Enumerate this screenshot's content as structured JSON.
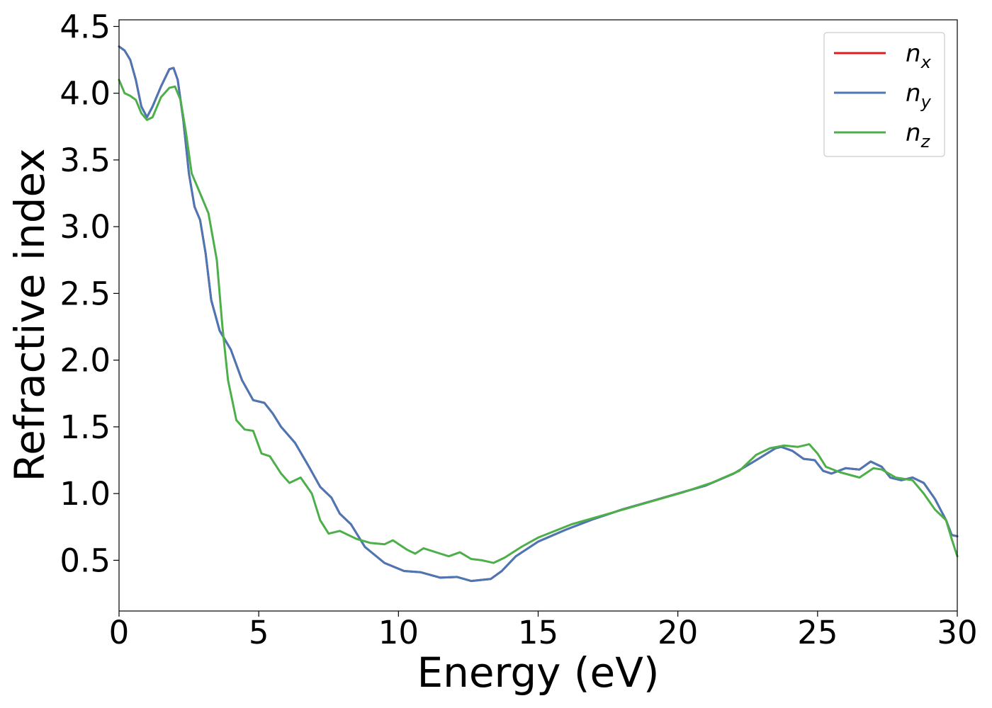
{
  "chart_data": {
    "type": "line",
    "xlabel": "Energy (eV)",
    "ylabel": "Refractive index",
    "xlim": [
      0,
      30
    ],
    "ylim": [
      0.12,
      4.55
    ],
    "x_ticks": [
      "0",
      "5",
      "10",
      "15",
      "20",
      "25",
      "30"
    ],
    "y_ticks": [
      "0.5",
      "1.0",
      "1.5",
      "2.0",
      "2.5",
      "3.0",
      "3.5",
      "4.0",
      "4.5"
    ],
    "legend_position": "top-right",
    "grid": false,
    "series": [
      {
        "name": "n",
        "sub": "x",
        "color": "#e41a1c",
        "points": [
          [
            0,
            4.35
          ],
          [
            0.2,
            4.32
          ],
          [
            0.4,
            4.25
          ],
          [
            0.6,
            4.1
          ],
          [
            0.8,
            3.9
          ],
          [
            1.0,
            3.82
          ],
          [
            1.2,
            3.9
          ],
          [
            1.5,
            4.05
          ],
          [
            1.8,
            4.18
          ],
          [
            1.95,
            4.19
          ],
          [
            2.1,
            4.1
          ],
          [
            2.3,
            3.8
          ],
          [
            2.5,
            3.4
          ],
          [
            2.7,
            3.15
          ],
          [
            2.9,
            3.05
          ],
          [
            3.1,
            2.8
          ],
          [
            3.3,
            2.45
          ],
          [
            3.6,
            2.22
          ],
          [
            4.0,
            2.08
          ],
          [
            4.4,
            1.85
          ],
          [
            4.8,
            1.7
          ],
          [
            5.2,
            1.68
          ],
          [
            5.5,
            1.6
          ],
          [
            5.8,
            1.5
          ],
          [
            6.3,
            1.38
          ],
          [
            6.8,
            1.2
          ],
          [
            7.2,
            1.05
          ],
          [
            7.6,
            0.97
          ],
          [
            7.9,
            0.85
          ],
          [
            8.3,
            0.77
          ],
          [
            8.8,
            0.6
          ],
          [
            9.5,
            0.48
          ],
          [
            10.2,
            0.42
          ],
          [
            10.8,
            0.41
          ],
          [
            11.5,
            0.37
          ],
          [
            12.1,
            0.375
          ],
          [
            12.6,
            0.345
          ],
          [
            13.3,
            0.36
          ],
          [
            13.7,
            0.42
          ],
          [
            14.2,
            0.53
          ],
          [
            15.0,
            0.64
          ],
          [
            16.0,
            0.73
          ],
          [
            17.0,
            0.81
          ],
          [
            18.0,
            0.88
          ],
          [
            19.0,
            0.94
          ],
          [
            20.0,
            1.0
          ],
          [
            21.0,
            1.06
          ],
          [
            22.0,
            1.15
          ],
          [
            22.8,
            1.25
          ],
          [
            23.5,
            1.34
          ],
          [
            23.7,
            1.35
          ],
          [
            24.1,
            1.32
          ],
          [
            24.5,
            1.26
          ],
          [
            24.9,
            1.25
          ],
          [
            25.2,
            1.17
          ],
          [
            25.5,
            1.15
          ],
          [
            26.0,
            1.19
          ],
          [
            26.5,
            1.18
          ],
          [
            26.9,
            1.24
          ],
          [
            27.3,
            1.2
          ],
          [
            27.6,
            1.12
          ],
          [
            28.0,
            1.1
          ],
          [
            28.4,
            1.12
          ],
          [
            28.8,
            1.08
          ],
          [
            29.2,
            0.96
          ],
          [
            29.6,
            0.8
          ],
          [
            29.8,
            0.69
          ],
          [
            30,
            0.68
          ]
        ]
      },
      {
        "name": "n",
        "sub": "y",
        "color": "#4a77b5",
        "points": [
          [
            0,
            4.35
          ],
          [
            0.2,
            4.32
          ],
          [
            0.4,
            4.25
          ],
          [
            0.6,
            4.1
          ],
          [
            0.8,
            3.9
          ],
          [
            1.0,
            3.82
          ],
          [
            1.2,
            3.9
          ],
          [
            1.5,
            4.05
          ],
          [
            1.8,
            4.18
          ],
          [
            1.95,
            4.19
          ],
          [
            2.1,
            4.1
          ],
          [
            2.3,
            3.8
          ],
          [
            2.5,
            3.4
          ],
          [
            2.7,
            3.15
          ],
          [
            2.9,
            3.05
          ],
          [
            3.1,
            2.8
          ],
          [
            3.3,
            2.45
          ],
          [
            3.6,
            2.22
          ],
          [
            4.0,
            2.08
          ],
          [
            4.4,
            1.85
          ],
          [
            4.8,
            1.7
          ],
          [
            5.2,
            1.68
          ],
          [
            5.5,
            1.6
          ],
          [
            5.8,
            1.5
          ],
          [
            6.3,
            1.38
          ],
          [
            6.8,
            1.2
          ],
          [
            7.2,
            1.05
          ],
          [
            7.6,
            0.97
          ],
          [
            7.9,
            0.85
          ],
          [
            8.3,
            0.77
          ],
          [
            8.8,
            0.6
          ],
          [
            9.5,
            0.48
          ],
          [
            10.2,
            0.42
          ],
          [
            10.8,
            0.41
          ],
          [
            11.5,
            0.37
          ],
          [
            12.1,
            0.375
          ],
          [
            12.6,
            0.345
          ],
          [
            13.3,
            0.36
          ],
          [
            13.7,
            0.42
          ],
          [
            14.2,
            0.53
          ],
          [
            15.0,
            0.64
          ],
          [
            16.0,
            0.73
          ],
          [
            17.0,
            0.81
          ],
          [
            18.0,
            0.88
          ],
          [
            19.0,
            0.94
          ],
          [
            20.0,
            1.0
          ],
          [
            21.0,
            1.06
          ],
          [
            22.0,
            1.15
          ],
          [
            22.8,
            1.25
          ],
          [
            23.5,
            1.34
          ],
          [
            23.7,
            1.35
          ],
          [
            24.1,
            1.32
          ],
          [
            24.5,
            1.26
          ],
          [
            24.9,
            1.25
          ],
          [
            25.2,
            1.17
          ],
          [
            25.5,
            1.15
          ],
          [
            26.0,
            1.19
          ],
          [
            26.5,
            1.18
          ],
          [
            26.9,
            1.24
          ],
          [
            27.3,
            1.2
          ],
          [
            27.6,
            1.12
          ],
          [
            28.0,
            1.1
          ],
          [
            28.4,
            1.12
          ],
          [
            28.8,
            1.08
          ],
          [
            29.2,
            0.96
          ],
          [
            29.6,
            0.8
          ],
          [
            29.8,
            0.69
          ],
          [
            30,
            0.68
          ]
        ]
      },
      {
        "name": "n",
        "sub": "z",
        "color": "#4daf4a",
        "points": [
          [
            0,
            4.1
          ],
          [
            0.2,
            4.0
          ],
          [
            0.4,
            3.98
          ],
          [
            0.6,
            3.95
          ],
          [
            0.8,
            3.85
          ],
          [
            1.0,
            3.8
          ],
          [
            1.2,
            3.82
          ],
          [
            1.5,
            3.97
          ],
          [
            1.8,
            4.04
          ],
          [
            2.0,
            4.05
          ],
          [
            2.2,
            3.95
          ],
          [
            2.4,
            3.7
          ],
          [
            2.6,
            3.4
          ],
          [
            2.9,
            3.25
          ],
          [
            3.2,
            3.1
          ],
          [
            3.5,
            2.75
          ],
          [
            3.7,
            2.25
          ],
          [
            3.9,
            1.85
          ],
          [
            4.2,
            1.55
          ],
          [
            4.5,
            1.48
          ],
          [
            4.8,
            1.47
          ],
          [
            5.1,
            1.3
          ],
          [
            5.4,
            1.28
          ],
          [
            5.8,
            1.15
          ],
          [
            6.1,
            1.08
          ],
          [
            6.5,
            1.12
          ],
          [
            6.9,
            1.0
          ],
          [
            7.2,
            0.8
          ],
          [
            7.5,
            0.7
          ],
          [
            7.9,
            0.72
          ],
          [
            8.5,
            0.66
          ],
          [
            9.0,
            0.63
          ],
          [
            9.5,
            0.62
          ],
          [
            9.8,
            0.65
          ],
          [
            10.3,
            0.58
          ],
          [
            10.6,
            0.55
          ],
          [
            10.9,
            0.59
          ],
          [
            11.5,
            0.55
          ],
          [
            11.8,
            0.53
          ],
          [
            12.2,
            0.56
          ],
          [
            12.6,
            0.51
          ],
          [
            13.0,
            0.5
          ],
          [
            13.4,
            0.48
          ],
          [
            13.8,
            0.52
          ],
          [
            14.4,
            0.6
          ],
          [
            15.0,
            0.67
          ],
          [
            15.6,
            0.72
          ],
          [
            16.2,
            0.77
          ],
          [
            17.2,
            0.83
          ],
          [
            18.2,
            0.89
          ],
          [
            19.2,
            0.95
          ],
          [
            20.2,
            1.01
          ],
          [
            21.2,
            1.08
          ],
          [
            22.2,
            1.17
          ],
          [
            22.8,
            1.29
          ],
          [
            23.3,
            1.34
          ],
          [
            23.8,
            1.36
          ],
          [
            24.3,
            1.35
          ],
          [
            24.7,
            1.37
          ],
          [
            25.0,
            1.3
          ],
          [
            25.3,
            1.2
          ],
          [
            25.8,
            1.16
          ],
          [
            26.5,
            1.12
          ],
          [
            27.0,
            1.19
          ],
          [
            27.3,
            1.18
          ],
          [
            27.8,
            1.12
          ],
          [
            28.4,
            1.1
          ],
          [
            28.8,
            1.0
          ],
          [
            29.2,
            0.88
          ],
          [
            29.6,
            0.8
          ],
          [
            29.8,
            0.66
          ],
          [
            30,
            0.53
          ]
        ]
      }
    ]
  }
}
